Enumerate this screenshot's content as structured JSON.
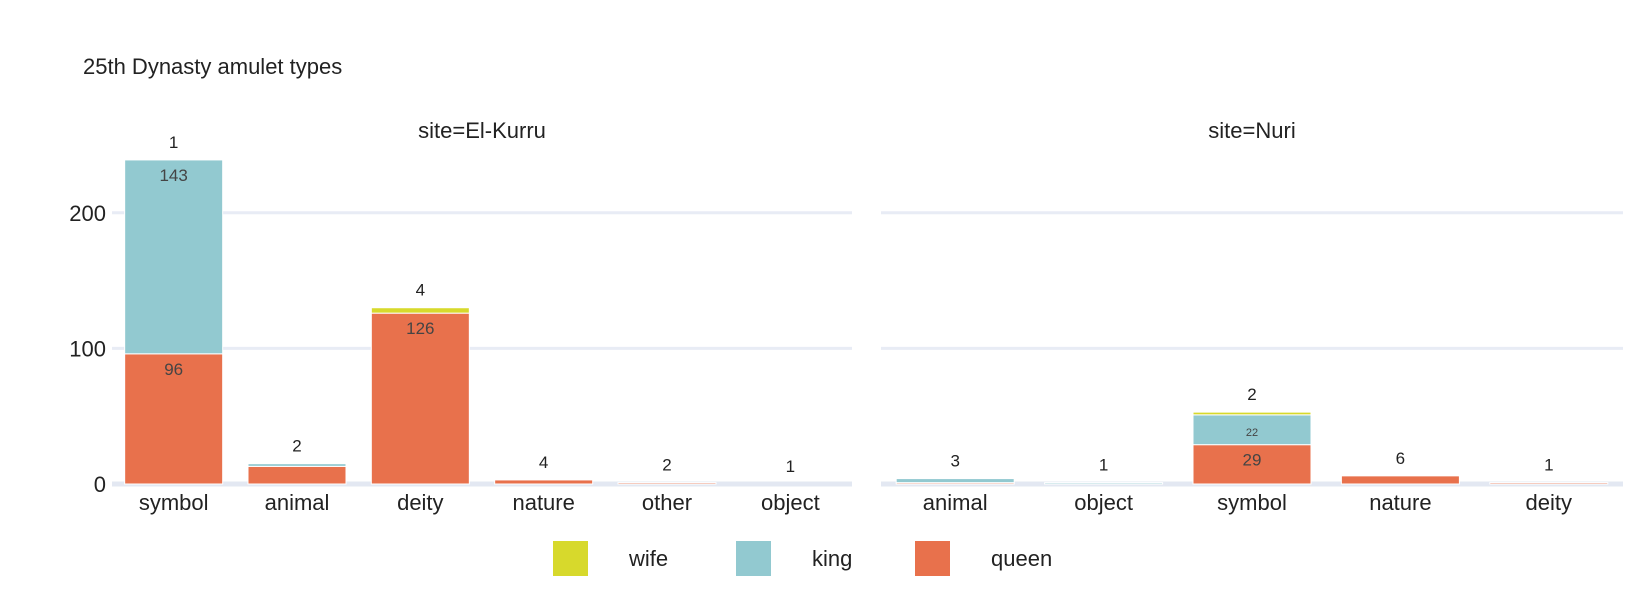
{
  "chart_data": {
    "type": "bar",
    "title": "25th Dynasty amulet types",
    "xlabel": "",
    "ylabel": "",
    "ylim": [
      0,
      250
    ],
    "yticks": [
      0,
      100,
      200
    ],
    "grid": true,
    "legend_position": "bottom-center",
    "series_order": [
      "queen",
      "king",
      "wife"
    ],
    "legend_order": [
      "wife",
      "king",
      "queen"
    ],
    "colors": {
      "wife": "#d7d92c",
      "king": "#92c9d0",
      "queen": "#e8714c"
    },
    "facets": [
      {
        "title": "site=El-Kurru",
        "categories": [
          "symbol",
          "animal",
          "deity",
          "nature",
          "other",
          "object"
        ],
        "series": [
          {
            "name": "queen",
            "values": [
              96,
              13,
              126,
              3,
              1,
              0
            ]
          },
          {
            "name": "king",
            "values": [
              143,
              2,
              0,
              0,
              0,
              0
            ]
          },
          {
            "name": "wife",
            "values": [
              0,
              0,
              4,
              0,
              0,
              0
            ]
          }
        ],
        "segment_labels": [
          {
            "category": "symbol",
            "series": "king",
            "text": "143"
          },
          {
            "category": "symbol",
            "series": "queen",
            "text": "96"
          },
          {
            "category": "deity",
            "series": "queen",
            "text": "126"
          }
        ],
        "top_labels": [
          "1",
          "2",
          "4",
          "4",
          "2",
          "1"
        ]
      },
      {
        "title": "site=Nuri",
        "categories": [
          "animal",
          "object",
          "symbol",
          "nature",
          "deity"
        ],
        "series": [
          {
            "name": "queen",
            "values": [
              1,
              0,
              29,
              6,
              1
            ]
          },
          {
            "name": "king",
            "values": [
              3,
              1,
              22,
              0,
              0
            ]
          },
          {
            "name": "wife",
            "values": [
              0,
              0,
              2,
              0,
              0
            ]
          }
        ],
        "segment_labels": [
          {
            "category": "symbol",
            "series": "king",
            "text": "22"
          },
          {
            "category": "symbol",
            "series": "queen",
            "text": "29"
          }
        ],
        "top_labels": [
          "3",
          "1",
          "2",
          "6",
          "1"
        ]
      }
    ]
  }
}
